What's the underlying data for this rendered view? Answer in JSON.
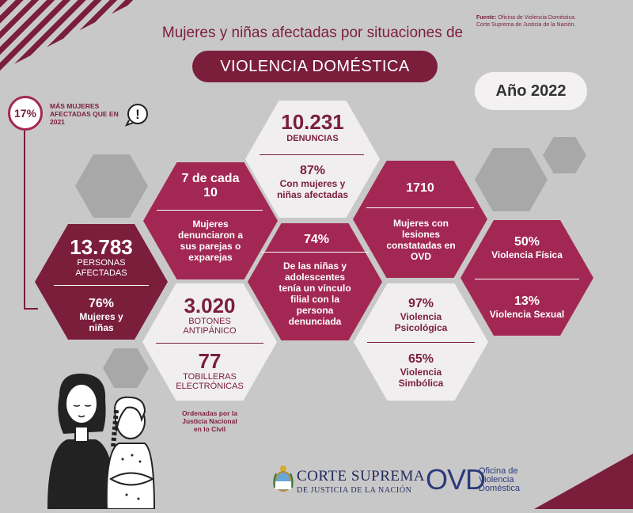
{
  "source": {
    "label": "Fuente:",
    "text": "Oficina de Violencia Doméstica.",
    "line2": "Corte Suprema de Justicia de la Nación."
  },
  "title": "Mujeres y niñas afectadas por situaciones de",
  "banner": "VIOLENCIA DOMÉSTICA",
  "year": "Año 2022",
  "increase": {
    "value": "17%",
    "text": "MÁS MUJERES AFECTADAS QUE EN 2021"
  },
  "alert_symbol": "!",
  "personas": {
    "value": "13.783",
    "label": "PERSONAS AFECTADAS",
    "pct": "76%",
    "pct_label": "Mujeres y niñas"
  },
  "denunciaron": {
    "value": "7 de cada 10",
    "label": "Mujeres denunciaron a sus parejas o exparejas"
  },
  "denuncias": {
    "value": "10.231",
    "label": "DENUNCIAS",
    "pct": "87%",
    "pct_label": "Con mujeres y niñas afectadas"
  },
  "ninas": {
    "value": "74%",
    "label": "De las niñas y adolescentes tenía un vínculo filial con la persona denunciada"
  },
  "lesiones": {
    "value": "1710",
    "label": "Mujeres con lesiones constatadas en OVD"
  },
  "botones": {
    "value": "3.020",
    "label": "BOTONES ANTIPÁNICO",
    "value2": "77",
    "label2": "TOBILLERAS ELECTRÓNICAS"
  },
  "psicologica": {
    "value": "97%",
    "label": "Violencia Psicológica",
    "value2": "65%",
    "label2": "Violencia Simbólica"
  },
  "fisica": {
    "value": "50%",
    "label": "Violencia Física",
    "value2": "13%",
    "label2": "Violencia Sexual"
  },
  "note": "Ordenadas por la Justicia Nacional en lo Civil",
  "logos": {
    "cs_line1": "CORTE SUPREMA",
    "cs_line2": "DE JUSTICIA DE LA NACIÓN",
    "ovd": "OVD",
    "ovd_sub1": "Oficina de",
    "ovd_sub2": "Violencia",
    "ovd_sub3": "Doméstica"
  },
  "colors": {
    "maroon": "#a32753",
    "dark_maroon": "#7a1e3c",
    "light": "#f1eeef",
    "background": "#c9c8c9",
    "gray_hex": "#a9a8a9"
  }
}
